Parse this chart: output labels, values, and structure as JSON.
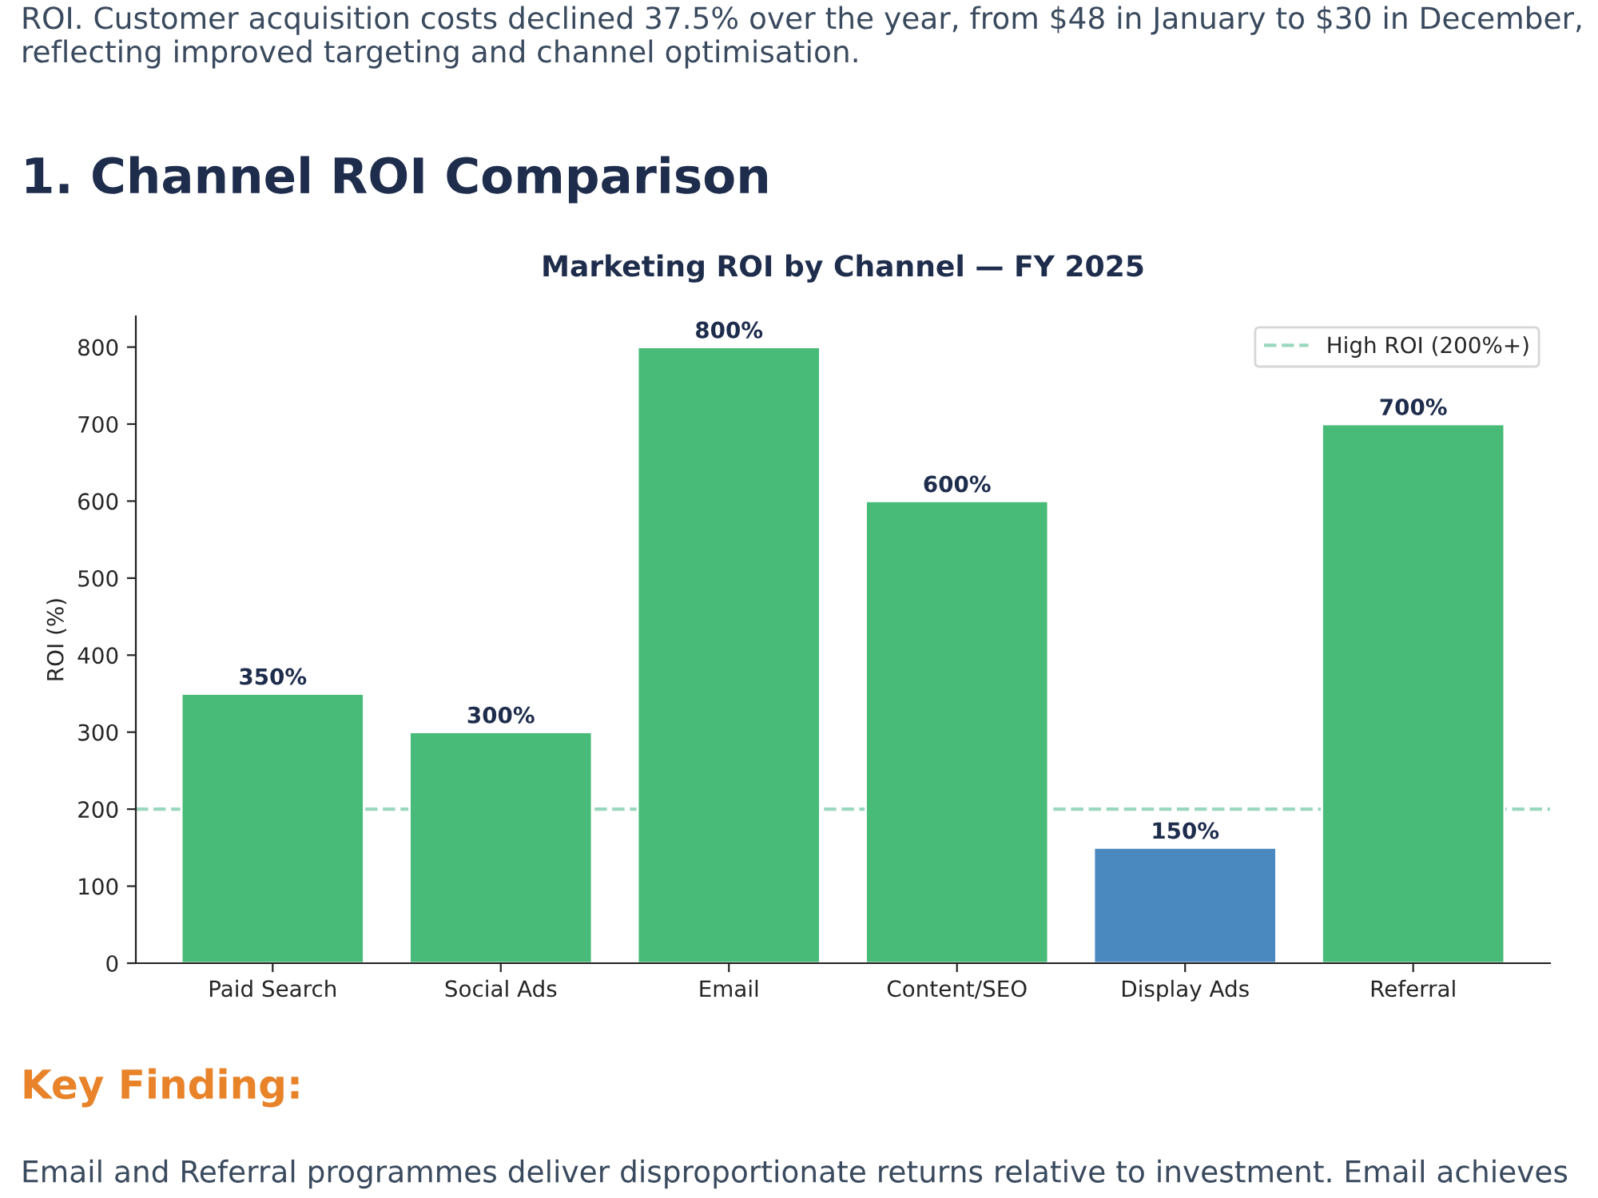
{
  "chart_data": {
    "type": "bar",
    "title": "Marketing ROI by Channel — FY 2025",
    "ylabel": "ROI (%)",
    "categories": [
      "Paid Search",
      "Social Ads",
      "Email",
      "Content/SEO",
      "Display Ads",
      "Referral"
    ],
    "values": [
      350,
      300,
      800,
      600,
      150,
      700
    ],
    "colors": [
      "#48bb78",
      "#48bb78",
      "#48bb78",
      "#48bb78",
      "#4a89c0",
      "#48bb78"
    ],
    "value_labels": [
      "350%",
      "300%",
      "800%",
      "600%",
      "150%",
      "700%"
    ],
    "ylim": [
      0,
      840
    ],
    "yticks": [
      0,
      100,
      200,
      300,
      400,
      500,
      600,
      700,
      800
    ],
    "ref_lines": [
      {
        "axis": "y",
        "value": 200,
        "label": "High ROI (200%+)",
        "color": "#9ad8bd",
        "line_style": "dashed"
      }
    ],
    "legend": "top right",
    "grid": false,
    "annotations": [
      "ROI. Customer acquisition costs declined 37.5% over the year, from $48 in January to $30 in December, reflecting improved targeting and channel optimisation.",
      "1. Channel ROI Comparison",
      "Key Finding:",
      "Email and Referral programmes deliver disproportionate returns relative to investment. Email achieves"
    ]
  }
}
